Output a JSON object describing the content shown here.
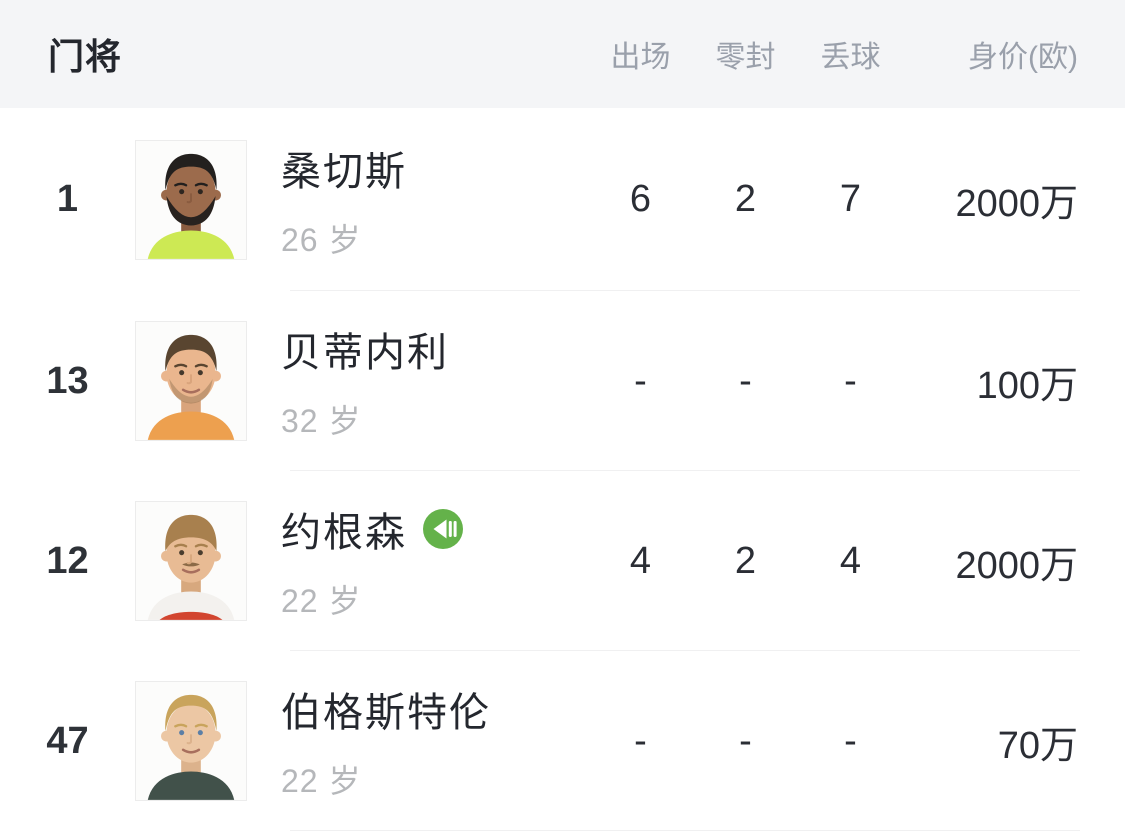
{
  "header": {
    "title": "门将",
    "columns": [
      "出场",
      "零封",
      "丢球",
      "身价(欧)"
    ]
  },
  "players": [
    {
      "number": "1",
      "name": "桑切斯",
      "age": "26 岁",
      "stats": [
        "6",
        "2",
        "7"
      ],
      "value": "2000万",
      "badge": "",
      "photo": {
        "skin": "#9c6b4c",
        "shade": "#8a5c40",
        "hair": "#23201e",
        "facial": "beard",
        "facialColor": "#28221f",
        "jersey": "#cde954",
        "trim": "",
        "eyes": "#2e2620",
        "hairline": 26
      }
    },
    {
      "number": "13",
      "name": "贝蒂内利",
      "age": "32 岁",
      "stats": [
        "-",
        "-",
        "-"
      ],
      "value": "100万",
      "badge": "",
      "photo": {
        "skin": "#eab68e",
        "shade": "#d9a47c",
        "hair": "#594530",
        "facial": "stubble",
        "facialColor": "#6e5638",
        "jersey": "#eda04f",
        "trim": "",
        "eyes": "#43382c",
        "hairline": 28
      }
    },
    {
      "number": "12",
      "name": "约根森",
      "age": "22 岁",
      "stats": [
        "4",
        "2",
        "4"
      ],
      "value": "2000万",
      "badge": "loan-in",
      "photo": {
        "skin": "#e8bb94",
        "shade": "#d7a87e",
        "hair": "#a8804e",
        "facial": "mustache",
        "facialColor": "#7a5c38",
        "jersey": "#f3f1ee",
        "trim": "#d2452f",
        "eyes": "#4a3d2e",
        "hairline": 36
      }
    },
    {
      "number": "47",
      "name": "伯格斯特伦",
      "age": "22 岁",
      "stats": [
        "-",
        "-",
        "-"
      ],
      "value": "70万",
      "badge": "",
      "photo": {
        "skin": "#ecc7a4",
        "shade": "#dcb28c",
        "hair": "#c9a45c",
        "facial": "none",
        "facialColor": "#b08f5e",
        "jersey": "#41514a",
        "trim": "",
        "eyes": "#5b7fa6",
        "hairline": 24
      }
    }
  ],
  "icons": {
    "loan_badge": "loan-in-icon",
    "loan_badge_color": "#64b24a"
  },
  "colors": {
    "header_bg": "#f4f5f7",
    "header_text": "#9aa0ab",
    "text_dark": "#24272e",
    "text_gray": "#b5b7ba",
    "divider": "#f0f0f1"
  }
}
